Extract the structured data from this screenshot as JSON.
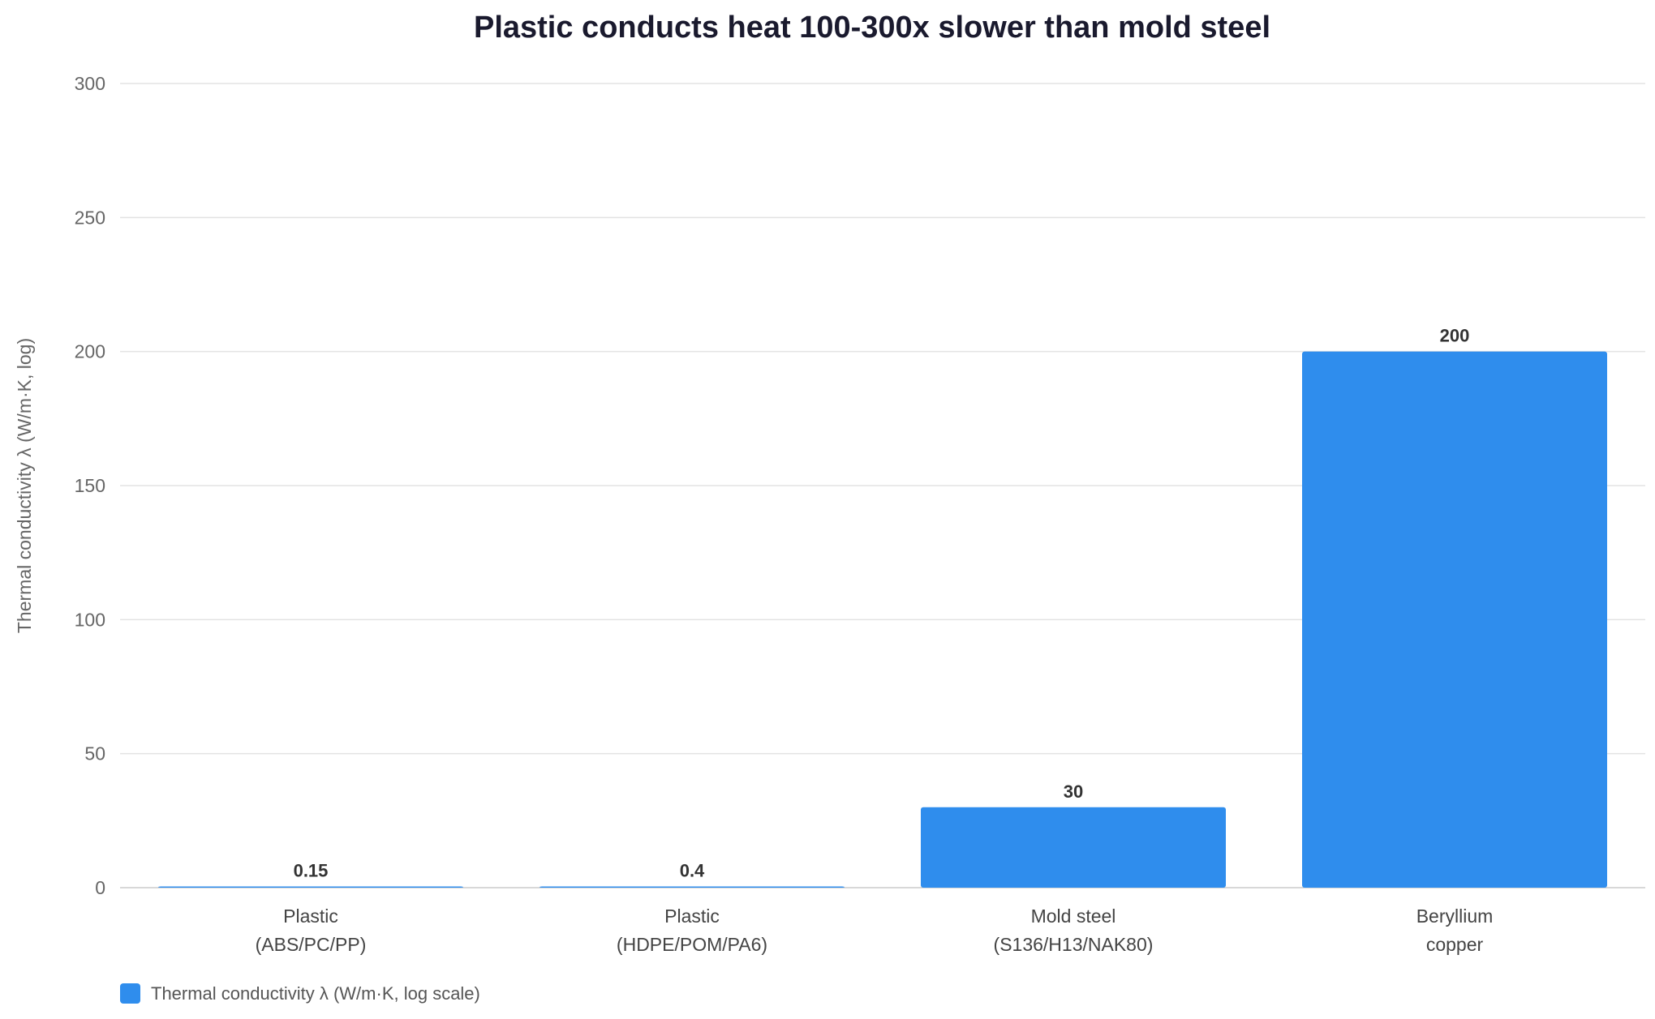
{
  "chart_data": {
    "type": "bar",
    "title": "Plastic conducts heat 100-300x slower than mold steel",
    "xlabel": "",
    "ylabel": "Thermal conductivity λ (W/m·K, log)",
    "ylim": [
      0,
      300
    ],
    "yticks": [
      0,
      50,
      100,
      150,
      200,
      250,
      300
    ],
    "grid": true,
    "legend_position": "bottom-left",
    "categories": [
      [
        "Plastic",
        "(ABS/PC/PP)"
      ],
      [
        "Plastic",
        "(HDPE/POM/PA6)"
      ],
      [
        "Mold steel",
        "(S136/H13/NAK80)"
      ],
      [
        "Beryllium",
        "copper"
      ]
    ],
    "series": [
      {
        "name": "Thermal conductivity λ (W/m·K, log scale)",
        "color": "#2f8ded",
        "values": [
          0.15,
          0.4,
          30,
          200
        ],
        "labels": [
          "0.15",
          "0.4",
          "30",
          "200"
        ]
      }
    ]
  }
}
